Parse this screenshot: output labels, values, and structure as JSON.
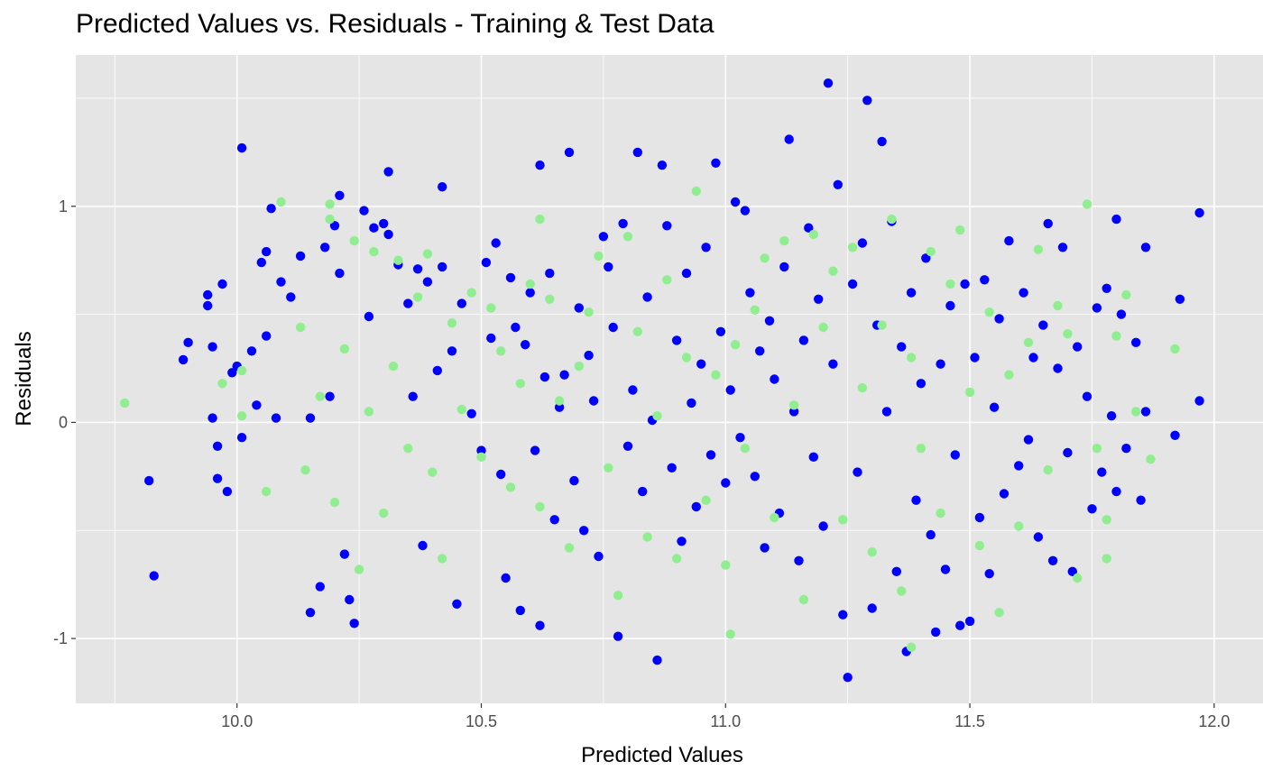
{
  "chart_data": {
    "type": "scatter",
    "title": "Predicted Values vs. Residuals - Training & Test Data",
    "xlabel": "Predicted Values",
    "ylabel": "Residuals",
    "xlim": [
      9.67,
      12.1
    ],
    "ylim": [
      -1.3,
      1.7
    ],
    "x_ticks": [
      10.0,
      10.5,
      11.0,
      11.5,
      12.0
    ],
    "x_tick_labels": [
      "10.0",
      "10.5",
      "11.0",
      "11.5",
      "12.0"
    ],
    "y_ticks": [
      -1,
      0,
      1
    ],
    "y_tick_labels": [
      "-1",
      "0",
      "1"
    ],
    "grid": true,
    "legend": "none",
    "panel_background": "#e5e5e5",
    "grid_color": "#ffffff",
    "series": [
      {
        "color": "#0000ff",
        "points": [
          [
            9.82,
            -0.27
          ],
          [
            9.83,
            -0.71
          ],
          [
            9.89,
            0.29
          ],
          [
            9.9,
            0.37
          ],
          [
            9.94,
            0.59
          ],
          [
            9.94,
            0.54
          ],
          [
            9.95,
            0.35
          ],
          [
            9.95,
            0.02
          ],
          [
            9.96,
            -0.26
          ],
          [
            9.96,
            -0.11
          ],
          [
            9.97,
            0.64
          ],
          [
            9.98,
            -0.32
          ],
          [
            9.99,
            0.23
          ],
          [
            10.0,
            0.26
          ],
          [
            10.01,
            -0.07
          ],
          [
            10.01,
            1.27
          ],
          [
            10.03,
            0.33
          ],
          [
            10.04,
            0.08
          ],
          [
            10.05,
            0.74
          ],
          [
            10.06,
            0.79
          ],
          [
            10.06,
            0.4
          ],
          [
            10.07,
            0.99
          ],
          [
            10.08,
            0.02
          ],
          [
            10.09,
            0.65
          ],
          [
            10.11,
            0.58
          ],
          [
            10.13,
            0.77
          ],
          [
            10.15,
            0.02
          ],
          [
            10.15,
            -0.88
          ],
          [
            10.17,
            -0.76
          ],
          [
            10.18,
            0.81
          ],
          [
            10.19,
            0.12
          ],
          [
            10.2,
            0.91
          ],
          [
            10.21,
            1.05
          ],
          [
            10.21,
            0.69
          ],
          [
            10.22,
            -0.61
          ],
          [
            10.23,
            -0.82
          ],
          [
            10.24,
            -0.93
          ],
          [
            10.26,
            0.98
          ],
          [
            10.27,
            0.49
          ],
          [
            10.28,
            0.9
          ],
          [
            10.3,
            0.92
          ],
          [
            10.31,
            1.16
          ],
          [
            10.31,
            0.87
          ],
          [
            10.33,
            0.73
          ],
          [
            10.35,
            0.55
          ],
          [
            10.36,
            0.12
          ],
          [
            10.37,
            0.71
          ],
          [
            10.38,
            -0.57
          ],
          [
            10.39,
            0.65
          ],
          [
            10.41,
            0.24
          ],
          [
            10.42,
            1.09
          ],
          [
            10.42,
            0.72
          ],
          [
            10.44,
            0.33
          ],
          [
            10.45,
            -0.84
          ],
          [
            10.46,
            0.55
          ],
          [
            10.48,
            0.04
          ],
          [
            10.5,
            -0.13
          ],
          [
            10.51,
            0.74
          ],
          [
            10.52,
            0.39
          ],
          [
            10.53,
            0.83
          ],
          [
            10.54,
            -0.24
          ],
          [
            10.55,
            -0.72
          ],
          [
            10.56,
            0.67
          ],
          [
            10.57,
            0.44
          ],
          [
            10.58,
            -0.87
          ],
          [
            10.59,
            0.36
          ],
          [
            10.6,
            0.6
          ],
          [
            10.61,
            -0.13
          ],
          [
            10.62,
            1.19
          ],
          [
            10.62,
            -0.94
          ],
          [
            10.63,
            0.21
          ],
          [
            10.64,
            0.69
          ],
          [
            10.65,
            -0.45
          ],
          [
            10.66,
            0.07
          ],
          [
            10.67,
            0.22
          ],
          [
            10.68,
            1.25
          ],
          [
            10.69,
            -0.27
          ],
          [
            10.7,
            0.53
          ],
          [
            10.71,
            -0.5
          ],
          [
            10.72,
            0.31
          ],
          [
            10.73,
            0.1
          ],
          [
            10.74,
            -0.62
          ],
          [
            10.75,
            0.86
          ],
          [
            10.76,
            0.72
          ],
          [
            10.77,
            0.44
          ],
          [
            10.78,
            -0.99
          ],
          [
            10.79,
            0.92
          ],
          [
            10.8,
            -0.11
          ],
          [
            10.81,
            0.15
          ],
          [
            10.82,
            1.25
          ],
          [
            10.83,
            -0.32
          ],
          [
            10.84,
            0.58
          ],
          [
            10.85,
            0.01
          ],
          [
            10.86,
            -1.1
          ],
          [
            10.87,
            1.19
          ],
          [
            10.88,
            0.91
          ],
          [
            10.89,
            -0.21
          ],
          [
            10.9,
            0.38
          ],
          [
            10.91,
            -0.55
          ],
          [
            10.92,
            0.69
          ],
          [
            10.93,
            0.09
          ],
          [
            10.94,
            -0.39
          ],
          [
            10.95,
            0.27
          ],
          [
            10.96,
            0.81
          ],
          [
            10.97,
            -0.15
          ],
          [
            10.98,
            1.2
          ],
          [
            10.99,
            0.42
          ],
          [
            11.0,
            -0.28
          ],
          [
            11.01,
            0.15
          ],
          [
            11.02,
            1.02
          ],
          [
            11.03,
            -0.07
          ],
          [
            11.04,
            0.98
          ],
          [
            11.05,
            0.6
          ],
          [
            11.06,
            -0.25
          ],
          [
            11.07,
            0.33
          ],
          [
            11.08,
            -0.58
          ],
          [
            11.09,
            0.47
          ],
          [
            11.1,
            0.2
          ],
          [
            11.11,
            -0.42
          ],
          [
            11.12,
            0.72
          ],
          [
            11.13,
            1.31
          ],
          [
            11.14,
            0.05
          ],
          [
            11.15,
            -0.64
          ],
          [
            11.16,
            0.38
          ],
          [
            11.17,
            0.9
          ],
          [
            11.18,
            -0.16
          ],
          [
            11.19,
            0.57
          ],
          [
            11.2,
            -0.48
          ],
          [
            11.21,
            1.57
          ],
          [
            11.22,
            0.27
          ],
          [
            11.23,
            1.1
          ],
          [
            11.24,
            -0.89
          ],
          [
            11.25,
            -1.18
          ],
          [
            11.26,
            0.64
          ],
          [
            11.27,
            -0.23
          ],
          [
            11.28,
            0.83
          ],
          [
            11.29,
            1.49
          ],
          [
            11.3,
            -0.86
          ],
          [
            11.31,
            0.45
          ],
          [
            11.32,
            1.3
          ],
          [
            11.33,
            0.05
          ],
          [
            11.34,
            0.93
          ],
          [
            11.35,
            -0.69
          ],
          [
            11.36,
            0.35
          ],
          [
            11.37,
            -1.06
          ],
          [
            11.38,
            0.6
          ],
          [
            11.39,
            -0.36
          ],
          [
            11.4,
            0.18
          ],
          [
            11.41,
            0.76
          ],
          [
            11.42,
            -0.52
          ],
          [
            11.43,
            -0.97
          ],
          [
            11.44,
            0.27
          ],
          [
            11.45,
            -0.68
          ],
          [
            11.46,
            0.54
          ],
          [
            11.47,
            -0.15
          ],
          [
            11.48,
            -0.94
          ],
          [
            11.49,
            0.64
          ],
          [
            11.5,
            -0.92
          ],
          [
            11.51,
            0.3
          ],
          [
            11.52,
            -0.44
          ],
          [
            11.53,
            0.66
          ],
          [
            11.54,
            -0.7
          ],
          [
            11.55,
            0.07
          ],
          [
            11.56,
            0.48
          ],
          [
            11.57,
            -0.33
          ],
          [
            11.58,
            0.84
          ],
          [
            11.6,
            -0.2
          ],
          [
            11.61,
            0.6
          ],
          [
            11.62,
            -0.08
          ],
          [
            11.63,
            0.3
          ],
          [
            11.64,
            -0.53
          ],
          [
            11.65,
            0.45
          ],
          [
            11.66,
            0.92
          ],
          [
            11.67,
            -0.64
          ],
          [
            11.68,
            0.25
          ],
          [
            11.69,
            0.81
          ],
          [
            11.7,
            -0.14
          ],
          [
            11.71,
            -0.69
          ],
          [
            11.72,
            0.35
          ],
          [
            11.74,
            0.12
          ],
          [
            11.75,
            -0.4
          ],
          [
            11.76,
            0.53
          ],
          [
            11.77,
            -0.23
          ],
          [
            11.78,
            0.62
          ],
          [
            11.79,
            0.03
          ],
          [
            11.8,
            0.94
          ],
          [
            11.8,
            -0.32
          ],
          [
            11.81,
            0.5
          ],
          [
            11.82,
            -0.12
          ],
          [
            11.84,
            0.37
          ],
          [
            11.85,
            -0.36
          ],
          [
            11.86,
            0.81
          ],
          [
            11.86,
            0.05
          ],
          [
            11.92,
            -0.06
          ],
          [
            11.93,
            0.57
          ],
          [
            11.97,
            0.97
          ],
          [
            11.97,
            0.1
          ]
        ]
      },
      {
        "color": "#90ee90",
        "points": [
          [
            9.77,
            0.09
          ],
          [
            9.97,
            0.18
          ],
          [
            10.01,
            0.24
          ],
          [
            10.01,
            0.03
          ],
          [
            10.06,
            -0.32
          ],
          [
            10.09,
            1.02
          ],
          [
            10.13,
            0.44
          ],
          [
            10.14,
            -0.22
          ],
          [
            10.17,
            0.12
          ],
          [
            10.19,
            1.01
          ],
          [
            10.19,
            0.94
          ],
          [
            10.2,
            -0.37
          ],
          [
            10.22,
            0.34
          ],
          [
            10.24,
            0.84
          ],
          [
            10.25,
            -0.68
          ],
          [
            10.27,
            0.05
          ],
          [
            10.28,
            0.79
          ],
          [
            10.3,
            -0.42
          ],
          [
            10.32,
            0.26
          ],
          [
            10.33,
            0.75
          ],
          [
            10.35,
            -0.12
          ],
          [
            10.37,
            0.58
          ],
          [
            10.39,
            0.78
          ],
          [
            10.4,
            -0.23
          ],
          [
            10.42,
            -0.63
          ],
          [
            10.44,
            0.46
          ],
          [
            10.46,
            0.06
          ],
          [
            10.48,
            0.6
          ],
          [
            10.5,
            -0.16
          ],
          [
            10.52,
            0.53
          ],
          [
            10.54,
            0.33
          ],
          [
            10.56,
            -0.3
          ],
          [
            10.58,
            0.18
          ],
          [
            10.6,
            0.64
          ],
          [
            10.62,
            0.94
          ],
          [
            10.62,
            -0.39
          ],
          [
            10.64,
            0.57
          ],
          [
            10.66,
            0.1
          ],
          [
            10.68,
            -0.58
          ],
          [
            10.7,
            0.26
          ],
          [
            10.72,
            0.51
          ],
          [
            10.74,
            0.77
          ],
          [
            10.76,
            -0.21
          ],
          [
            10.78,
            -0.8
          ],
          [
            10.8,
            0.86
          ],
          [
            10.82,
            0.42
          ],
          [
            10.84,
            -0.53
          ],
          [
            10.86,
            0.03
          ],
          [
            10.88,
            0.66
          ],
          [
            10.9,
            -0.63
          ],
          [
            10.92,
            0.3
          ],
          [
            10.94,
            1.07
          ],
          [
            10.96,
            -0.36
          ],
          [
            10.98,
            0.22
          ],
          [
            11.0,
            -0.66
          ],
          [
            11.01,
            -0.98
          ],
          [
            11.02,
            0.36
          ],
          [
            11.04,
            -0.12
          ],
          [
            11.06,
            0.52
          ],
          [
            11.08,
            0.76
          ],
          [
            11.1,
            -0.44
          ],
          [
            11.12,
            0.84
          ],
          [
            11.14,
            0.08
          ],
          [
            11.16,
            -0.82
          ],
          [
            11.18,
            0.87
          ],
          [
            11.2,
            0.44
          ],
          [
            11.22,
            0.7
          ],
          [
            11.24,
            -0.45
          ],
          [
            11.26,
            0.81
          ],
          [
            11.28,
            0.16
          ],
          [
            11.3,
            -0.6
          ],
          [
            11.32,
            0.45
          ],
          [
            11.34,
            0.94
          ],
          [
            11.36,
            -0.78
          ],
          [
            11.38,
            0.3
          ],
          [
            11.38,
            -1.04
          ],
          [
            11.4,
            -0.12
          ],
          [
            11.42,
            0.79
          ],
          [
            11.44,
            -0.42
          ],
          [
            11.46,
            0.64
          ],
          [
            11.48,
            0.89
          ],
          [
            11.5,
            0.14
          ],
          [
            11.52,
            -0.57
          ],
          [
            11.54,
            0.51
          ],
          [
            11.56,
            -0.88
          ],
          [
            11.58,
            0.22
          ],
          [
            11.6,
            -0.48
          ],
          [
            11.62,
            0.37
          ],
          [
            11.64,
            0.8
          ],
          [
            11.66,
            -0.22
          ],
          [
            11.68,
            0.54
          ],
          [
            11.7,
            0.41
          ],
          [
            11.72,
            -0.72
          ],
          [
            11.74,
            1.01
          ],
          [
            11.76,
            -0.12
          ],
          [
            11.78,
            -0.45
          ],
          [
            11.78,
            -0.63
          ],
          [
            11.8,
            0.4
          ],
          [
            11.82,
            0.59
          ],
          [
            11.84,
            0.05
          ],
          [
            11.87,
            -0.17
          ],
          [
            11.92,
            0.34
          ]
        ]
      }
    ]
  }
}
